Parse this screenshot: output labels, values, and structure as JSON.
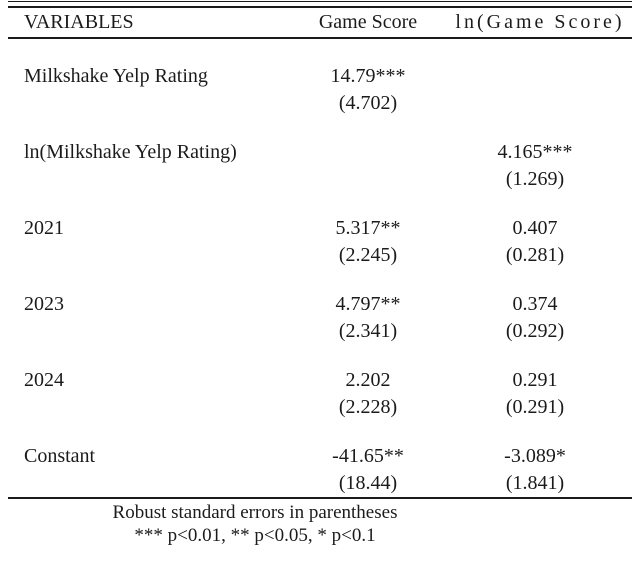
{
  "table": {
    "header": {
      "variables": "VARIABLES",
      "game_score": "Game Score",
      "ln_game_score": "ln(Game Score)"
    },
    "rows": [
      {
        "label": "Milkshake Yelp Rating",
        "game_score": {
          "coef": "14.79***",
          "se": "(4.702)"
        },
        "ln_game_score": {
          "coef": "",
          "se": ""
        }
      },
      {
        "label": "ln(Milkshake Yelp Rating)",
        "game_score": {
          "coef": "",
          "se": ""
        },
        "ln_game_score": {
          "coef": "4.165***",
          "se": "(1.269)"
        }
      },
      {
        "label": "2021",
        "game_score": {
          "coef": "5.317**",
          "se": "(2.245)"
        },
        "ln_game_score": {
          "coef": "0.407",
          "se": "(0.281)"
        }
      },
      {
        "label": "2023",
        "game_score": {
          "coef": "4.797**",
          "se": "(2.341)"
        },
        "ln_game_score": {
          "coef": "0.374",
          "se": "(0.292)"
        }
      },
      {
        "label": "2024",
        "game_score": {
          "coef": "2.202",
          "se": "(2.228)"
        },
        "ln_game_score": {
          "coef": "0.291",
          "se": "(0.291)"
        }
      },
      {
        "label": "Constant",
        "game_score": {
          "coef": "-41.65**",
          "se": "(18.44)"
        },
        "ln_game_score": {
          "coef": "-3.089*",
          "se": "(1.841)"
        }
      }
    ],
    "notes": {
      "robust_se": "Robust standard errors in parentheses",
      "significance": "*** p<0.01, ** p<0.05, * p<0.1"
    }
  },
  "colors": {
    "text": "#1b1b1b",
    "rule": "#1b1b1b",
    "background": "#ffffff"
  }
}
